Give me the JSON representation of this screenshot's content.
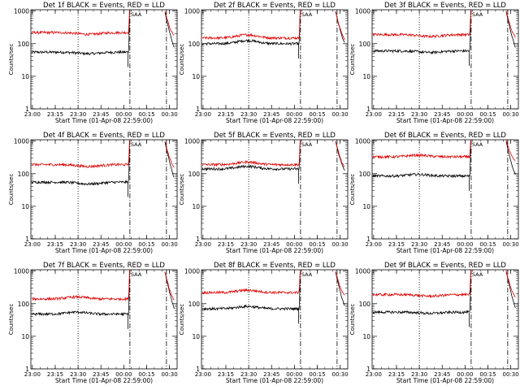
{
  "figure": {
    "title_template": "Det {n}f BLACK = Events, RED = LLD",
    "xlabel": "Start Time (01-Apr-08 22:59:00)",
    "ylabel": "Counts/sec",
    "x_tick_labels": [
      "23:00",
      "23:15",
      "23:30",
      "23:45",
      "00:00",
      "00:15",
      "00:30"
    ],
    "y_tick_labels": [
      "1",
      "10",
      "100",
      "1000"
    ],
    "saa_label": "SAA",
    "colors": {
      "events": "#000000",
      "lld": "#e00000",
      "axes": "#000000"
    }
  },
  "chart_data": [
    {
      "type": "line",
      "title": "Det 1f BLACK = Events, RED = LLD",
      "xlabel": "Start Time (01-Apr-08 22:59:00)",
      "ylabel": "Counts/sec",
      "yscale": "log",
      "ylim": [
        1,
        1100
      ],
      "x_range_minutes": [
        0,
        96
      ],
      "grid": false,
      "series": [
        {
          "name": "BLACK = Events",
          "color": "#000000",
          "level": 55,
          "dip": 0.1,
          "upturn_minute": 64,
          "post_saa_minute": 88
        },
        {
          "name": "RED = LLD",
          "color": "#e00000",
          "level": 220,
          "dip": 0.12,
          "upturn_minute": 64,
          "post_saa_minute": 88
        }
      ],
      "markers": [
        {
          "style": "dotted",
          "minute": 31
        },
        {
          "style": "dash-dot",
          "minute": 65
        },
        {
          "style": "dash-dot",
          "minute": 89
        }
      ]
    },
    {
      "type": "line",
      "title": "Det 2f BLACK = Events, RED = LLD",
      "xlabel": "Start Time (01-Apr-08 22:59:00)",
      "ylabel": "Counts/sec",
      "yscale": "log",
      "ylim": [
        1,
        1100
      ],
      "x_range_minutes": [
        0,
        96
      ],
      "grid": false,
      "series": [
        {
          "name": "BLACK = Events",
          "color": "#000000",
          "level": 100,
          "bump": 0.25,
          "upturn_minute": 64,
          "post_saa_minute": 88
        },
        {
          "name": "RED = LLD",
          "color": "#e00000",
          "level": 150,
          "bump": 0.25,
          "upturn_minute": 64,
          "post_saa_minute": 88
        }
      ],
      "markers": [
        {
          "style": "dotted",
          "minute": 31
        },
        {
          "style": "dash-dot",
          "minute": 65
        },
        {
          "style": "dash-dot",
          "minute": 89
        }
      ]
    },
    {
      "type": "line",
      "title": "Det 3f BLACK = Events, RED = LLD",
      "xlabel": "Start Time (01-Apr-08 22:59:00)",
      "ylabel": "Counts/sec",
      "yscale": "log",
      "ylim": [
        1,
        1100
      ],
      "x_range_minutes": [
        0,
        96
      ],
      "grid": false,
      "series": [
        {
          "name": "BLACK = Events",
          "color": "#000000",
          "level": 60,
          "dip": 0.1,
          "upturn_minute": 64,
          "post_saa_minute": 88
        },
        {
          "name": "RED = LLD",
          "color": "#e00000",
          "level": 190,
          "dip": 0.12,
          "upturn_minute": 64,
          "post_saa_minute": 88
        }
      ],
      "markers": [
        {
          "style": "dotted",
          "minute": 31
        },
        {
          "style": "dash-dot",
          "minute": 65
        },
        {
          "style": "dash-dot",
          "minute": 89
        }
      ]
    },
    {
      "type": "line",
      "title": "Det 4f BLACK = Events, RED = LLD",
      "xlabel": "Start Time (01-Apr-08 22:59:00)",
      "ylabel": "Counts/sec",
      "yscale": "log",
      "ylim": [
        1,
        1100
      ],
      "x_range_minutes": [
        0,
        96
      ],
      "grid": false,
      "series": [
        {
          "name": "BLACK = Events",
          "color": "#000000",
          "level": 55,
          "dip": 0.12,
          "upturn_minute": 64,
          "post_saa_minute": 88
        },
        {
          "name": "RED = LLD",
          "color": "#e00000",
          "level": 190,
          "dip": 0.12,
          "upturn_minute": 64,
          "post_saa_minute": 88
        }
      ],
      "markers": [
        {
          "style": "dotted",
          "minute": 31
        },
        {
          "style": "dash-dot",
          "minute": 65
        },
        {
          "style": "dash-dot",
          "minute": 89
        }
      ]
    },
    {
      "type": "line",
      "title": "Det 5f BLACK = Events, RED = LLD",
      "xlabel": "Start Time (01-Apr-08 22:59:00)",
      "ylabel": "Counts/sec",
      "yscale": "log",
      "ylim": [
        1,
        1100
      ],
      "x_range_minutes": [
        0,
        96
      ],
      "grid": false,
      "series": [
        {
          "name": "BLACK = Events",
          "color": "#000000",
          "level": 140,
          "bump": 0.2,
          "upturn_minute": 64,
          "post_saa_minute": 88
        },
        {
          "name": "RED = LLD",
          "color": "#e00000",
          "level": 190,
          "bump": 0.2,
          "upturn_minute": 64,
          "post_saa_minute": 88
        }
      ],
      "markers": [
        {
          "style": "dotted",
          "minute": 31
        },
        {
          "style": "dash-dot",
          "minute": 65
        },
        {
          "style": "dash-dot",
          "minute": 89
        }
      ]
    },
    {
      "type": "line",
      "title": "Det 6f BLACK = Events, RED = LLD",
      "xlabel": "Start Time (01-Apr-08 22:59:00)",
      "ylabel": "Counts/sec",
      "yscale": "log",
      "ylim": [
        1,
        1100
      ],
      "x_range_minutes": [
        0,
        96
      ],
      "grid": false,
      "series": [
        {
          "name": "BLACK = Events",
          "color": "#000000",
          "level": 85,
          "bump": 0.12,
          "upturn_minute": 64,
          "post_saa_minute": 88
        },
        {
          "name": "RED = LLD",
          "color": "#e00000",
          "level": 330,
          "bump": 0.12,
          "upturn_minute": 64,
          "post_saa_minute": 88
        }
      ],
      "markers": [
        {
          "style": "dotted",
          "minute": 31
        },
        {
          "style": "dash-dot",
          "minute": 65
        },
        {
          "style": "dash-dot",
          "minute": 89
        }
      ]
    },
    {
      "type": "line",
      "title": "Det 7f BLACK = Events, RED = LLD",
      "xlabel": "Start Time (01-Apr-08 22:59:00)",
      "ylabel": "Counts/sec",
      "yscale": "log",
      "ylim": [
        1,
        1100
      ],
      "x_range_minutes": [
        0,
        96
      ],
      "grid": false,
      "series": [
        {
          "name": "BLACK = Events",
          "color": "#000000",
          "level": 48,
          "bump": 0.15,
          "upturn_minute": 64,
          "post_saa_minute": 88
        },
        {
          "name": "RED = LLD",
          "color": "#e00000",
          "level": 140,
          "bump": 0.15,
          "upturn_minute": 64,
          "post_saa_minute": 88
        }
      ],
      "markers": [
        {
          "style": "dotted",
          "minute": 31
        },
        {
          "style": "dash-dot",
          "minute": 65
        },
        {
          "style": "dash-dot",
          "minute": 89
        }
      ]
    },
    {
      "type": "line",
      "title": "Det 8f BLACK = Events, RED = LLD",
      "xlabel": "Start Time (01-Apr-08 22:59:00)",
      "ylabel": "Counts/sec",
      "yscale": "log",
      "ylim": [
        1,
        1100
      ],
      "x_range_minutes": [
        0,
        96
      ],
      "grid": false,
      "series": [
        {
          "name": "BLACK = Events",
          "color": "#000000",
          "level": 70,
          "bump": 0.18,
          "upturn_minute": 64,
          "post_saa_minute": 88
        },
        {
          "name": "RED = LLD",
          "color": "#e00000",
          "level": 220,
          "bump": 0.18,
          "upturn_minute": 64,
          "post_saa_minute": 88
        }
      ],
      "markers": [
        {
          "style": "dotted",
          "minute": 31
        },
        {
          "style": "dash-dot",
          "minute": 65
        },
        {
          "style": "dash-dot",
          "minute": 89
        }
      ]
    },
    {
      "type": "line",
      "title": "Det 9f BLACK = Events, RED = LLD",
      "xlabel": "Start Time (01-Apr-08 22:59:00)",
      "ylabel": "Counts/sec",
      "yscale": "log",
      "ylim": [
        1,
        1100
      ],
      "x_range_minutes": [
        0,
        96
      ],
      "grid": false,
      "series": [
        {
          "name": "BLACK = Events",
          "color": "#000000",
          "level": 55,
          "dip": 0.08,
          "upturn_minute": 64,
          "post_saa_minute": 88
        },
        {
          "name": "RED = LLD",
          "color": "#e00000",
          "level": 190,
          "dip": 0.1,
          "upturn_minute": 64,
          "post_saa_minute": 88
        }
      ],
      "markers": [
        {
          "style": "dotted",
          "minute": 31
        },
        {
          "style": "dash-dot",
          "minute": 65
        },
        {
          "style": "dash-dot",
          "minute": 89
        }
      ]
    }
  ]
}
